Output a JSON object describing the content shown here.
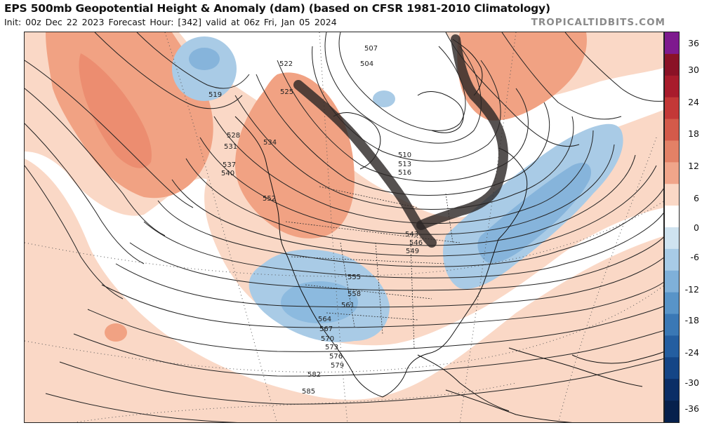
{
  "header": {
    "title": "EPS 500mb Geopotential Height & Anomaly (dam) (based on CFSR 1981-2010 Climatology)",
    "subtitle_init": "Init: 00z Dec 22 2023",
    "subtitle_hour": "Forecast Hour: [342]",
    "subtitle_valid": "valid at 06z Fri, Jan 05 2024",
    "brand": "TROPICALTIDBITS.COM"
  },
  "colorbar": {
    "ticks": [
      "36",
      "30",
      "24",
      "18",
      "12",
      "6",
      "0",
      "-6",
      "-12",
      "-18",
      "-24",
      "-30",
      "-36"
    ],
    "colors": [
      "#7e1a8e",
      "#8a1226",
      "#a81c2c",
      "#c33837",
      "#d35a4a",
      "#e38166",
      "#f0a58a",
      "#fad8c6",
      "#ffffff",
      "#cfe3f0",
      "#a8cbe6",
      "#7fb0d9",
      "#5894c8",
      "#3a78b5",
      "#245ea0",
      "#144586",
      "#0b2e66",
      "#06204c"
    ]
  },
  "map": {
    "height_labels": [
      "507",
      "504",
      "510",
      "513",
      "516",
      "519",
      "522",
      "525",
      "528",
      "531",
      "534",
      "537",
      "540",
      "543",
      "546",
      "549",
      "552",
      "555",
      "558",
      "561",
      "564",
      "567",
      "570",
      "573",
      "576",
      "579",
      "582",
      "585"
    ],
    "colors": {
      "positive_anomaly": "#f1a283",
      "strong_positive": "#e47c60",
      "weak_positive": "#fad8c6",
      "neutral": "#ffffff",
      "negative_anomaly": "#a9cbe6",
      "strong_negative": "#86b4db",
      "contour": "#222222",
      "trough_axis": "#2b2624"
    }
  }
}
